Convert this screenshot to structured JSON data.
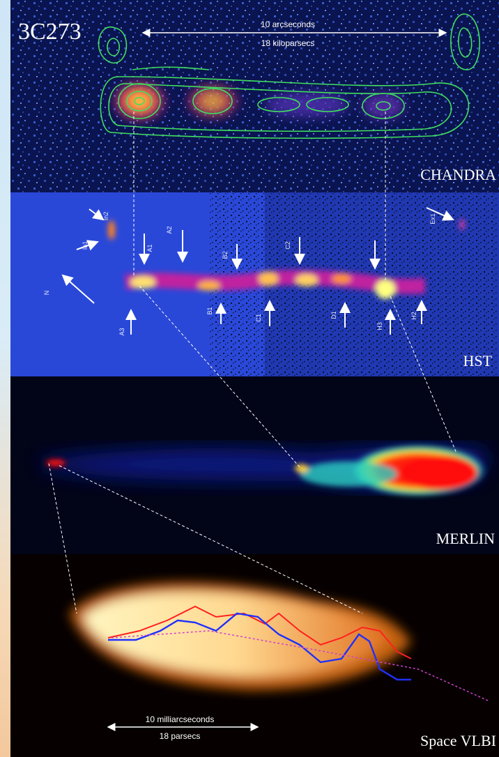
{
  "source": "3C273",
  "chandra": {
    "label": "CHANDRA",
    "scale_top": "10 arcseconds",
    "scale_bottom": "18 kiloparsecs"
  },
  "hst": {
    "label": "HST",
    "knots": [
      "In2",
      "In1",
      "N",
      "A1",
      "A2",
      "B2",
      "C2",
      "A3",
      "B1",
      "C1",
      "D1",
      "H3",
      "H2",
      "Ex1"
    ]
  },
  "merlin": {
    "label": "MERLIN"
  },
  "vlbi": {
    "label": "Space VLBI",
    "scale_top": "10 milliarcseconds",
    "scale_bottom": "18 parsecs"
  }
}
